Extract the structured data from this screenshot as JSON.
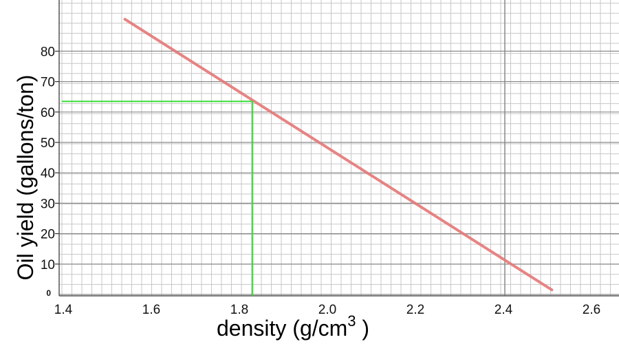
{
  "chart_data": {
    "type": "line",
    "xlabel": "density (g/cm",
    "xlabel_sup": "3",
    "xlabel_end": " )",
    "ylabel": "Oil yield (gallons/ton)",
    "xlim": [
      1.4,
      2.65
    ],
    "ylim": [
      0,
      90
    ],
    "x_ticks": [
      "1.4",
      "1.6",
      "1.8",
      "2.0",
      "2.2",
      "2.4",
      "2.6"
    ],
    "x_tick_values": [
      1.4,
      1.6,
      1.8,
      2.0,
      2.2,
      2.4,
      2.6
    ],
    "y_ticks": [
      "0",
      "10",
      "20",
      "30",
      "40",
      "50",
      "60",
      "70",
      "80"
    ],
    "y_tick_values": [
      0,
      10,
      20,
      30,
      40,
      50,
      60,
      70,
      80
    ],
    "grid": true,
    "series": [
      {
        "x": [
          1.54,
          2.51
        ],
        "y": [
          90.5,
          1.5
        ],
        "color": "#e57a7a"
      }
    ],
    "annotation": {
      "x": 1.83,
      "y": 63.5,
      "color": "#33dd33"
    }
  }
}
